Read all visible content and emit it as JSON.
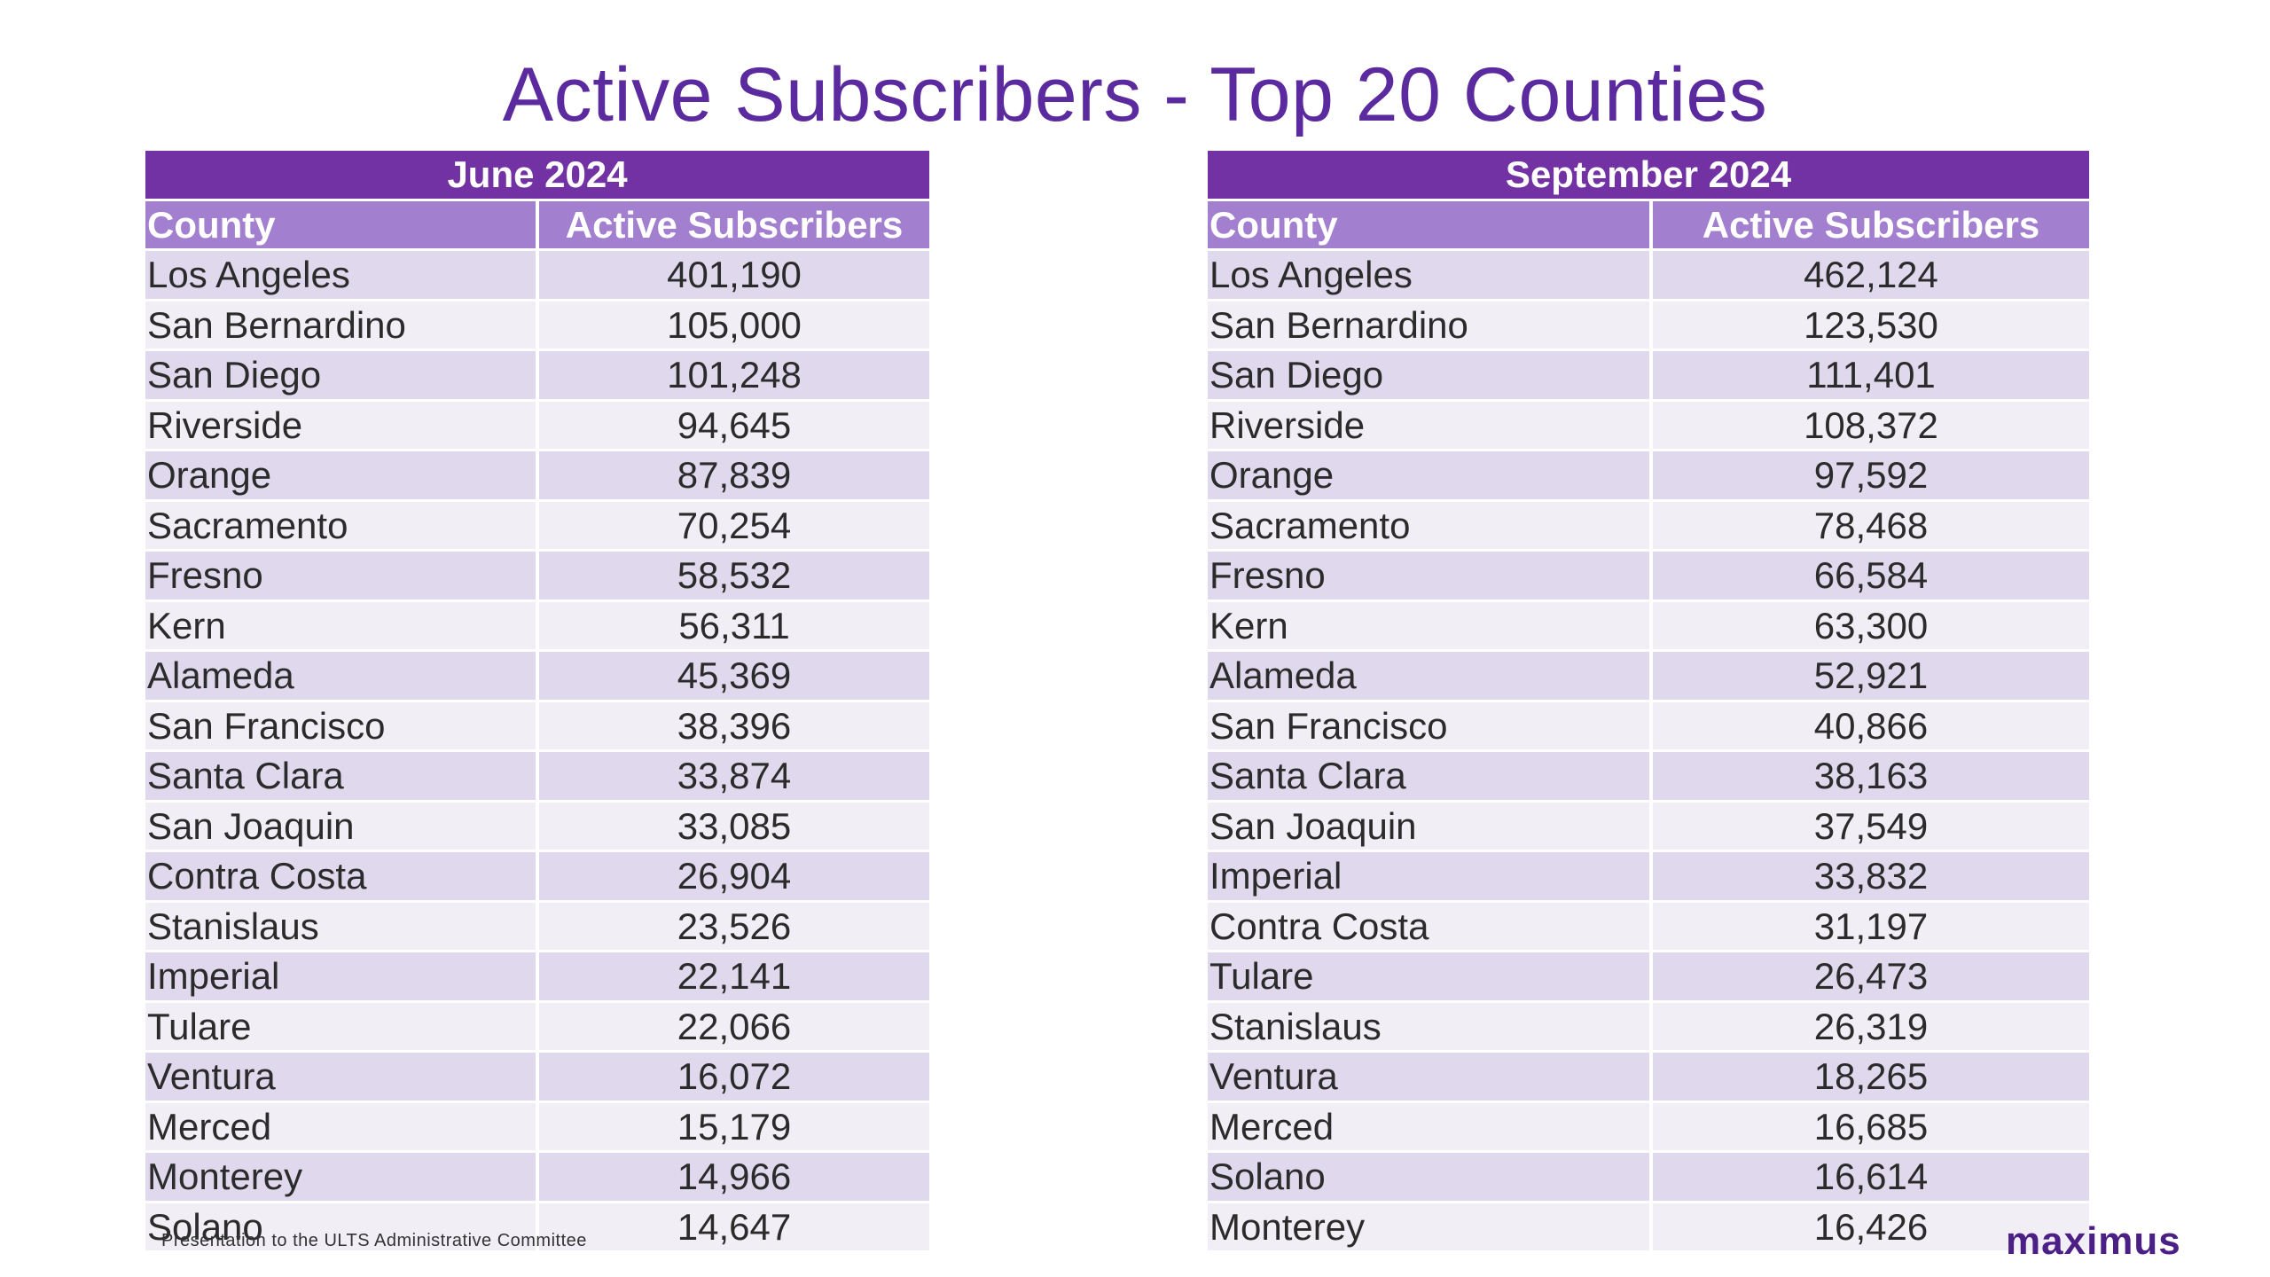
{
  "title": "Active Subscribers - Top 20 Counties",
  "columns": {
    "county": "County",
    "subscribers": "Active Subscribers"
  },
  "tables": [
    {
      "period": "June 2024",
      "rows": [
        {
          "county": "Los Angeles",
          "value": "401,190"
        },
        {
          "county": "San Bernardino",
          "value": "105,000"
        },
        {
          "county": "San Diego",
          "value": "101,248"
        },
        {
          "county": "Riverside",
          "value": "94,645"
        },
        {
          "county": "Orange",
          "value": "87,839"
        },
        {
          "county": "Sacramento",
          "value": "70,254"
        },
        {
          "county": "Fresno",
          "value": "58,532"
        },
        {
          "county": "Kern",
          "value": "56,311"
        },
        {
          "county": "Alameda",
          "value": "45,369"
        },
        {
          "county": "San Francisco",
          "value": "38,396"
        },
        {
          "county": "Santa Clara",
          "value": "33,874"
        },
        {
          "county": "San Joaquin",
          "value": "33,085"
        },
        {
          "county": "Contra Costa",
          "value": "26,904"
        },
        {
          "county": "Stanislaus",
          "value": "23,526"
        },
        {
          "county": "Imperial",
          "value": "22,141"
        },
        {
          "county": "Tulare",
          "value": "22,066"
        },
        {
          "county": "Ventura",
          "value": "16,072"
        },
        {
          "county": "Merced",
          "value": "15,179"
        },
        {
          "county": "Monterey",
          "value": "14,966"
        },
        {
          "county": "Solano",
          "value": "14,647"
        }
      ]
    },
    {
      "period": "September 2024",
      "rows": [
        {
          "county": "Los Angeles",
          "value": "462,124"
        },
        {
          "county": "San Bernardino",
          "value": "123,530"
        },
        {
          "county": "San Diego",
          "value": "111,401"
        },
        {
          "county": "Riverside",
          "value": "108,372"
        },
        {
          "county": "Orange",
          "value": "97,592"
        },
        {
          "county": "Sacramento",
          "value": "78,468"
        },
        {
          "county": "Fresno",
          "value": "66,584"
        },
        {
          "county": "Kern",
          "value": "63,300"
        },
        {
          "county": "Alameda",
          "value": "52,921"
        },
        {
          "county": "San Francisco",
          "value": "40,866"
        },
        {
          "county": "Santa Clara",
          "value": "38,163"
        },
        {
          "county": "San Joaquin",
          "value": "37,549"
        },
        {
          "county": "Imperial",
          "value": "33,832"
        },
        {
          "county": "Contra Costa",
          "value": "31,197"
        },
        {
          "county": "Tulare",
          "value": "26,473"
        },
        {
          "county": "Stanislaus",
          "value": "26,319"
        },
        {
          "county": "Ventura",
          "value": "18,265"
        },
        {
          "county": "Merced",
          "value": "16,685"
        },
        {
          "county": "Solano",
          "value": "16,614"
        },
        {
          "county": "Monterey",
          "value": "16,426"
        }
      ]
    }
  ],
  "footer": "Presentation to the ULTS Administrative Committee",
  "logo": "maximus",
  "colors": {
    "title": "#5b2a9e",
    "period_header": "#7232a3",
    "column_header": "#a37fcf",
    "row_dark": "#e0d8ec",
    "row_light": "#f1eef6",
    "logo": "#4b1f86"
  }
}
